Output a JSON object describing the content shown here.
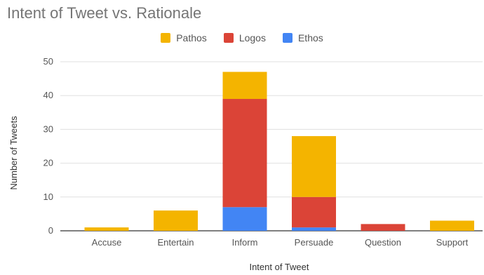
{
  "chart_data": {
    "type": "bar",
    "stacked": true,
    "title": "Intent of Tweet vs. Rationale",
    "xlabel": "Intent of Tweet",
    "ylabel": "Number of Tweets",
    "categories": [
      "Accuse",
      "Entertain",
      "Inform",
      "Persuade",
      "Question",
      "Support"
    ],
    "ylim": [
      0,
      50
    ],
    "yticks": [
      0,
      10,
      20,
      30,
      40,
      50
    ],
    "grid": true,
    "legend_position": "top",
    "series": [
      {
        "name": "Ethos",
        "color": "#4285f4",
        "values": [
          0,
          0,
          7,
          1,
          0,
          0
        ]
      },
      {
        "name": "Logos",
        "color": "#db4437",
        "values": [
          0,
          0,
          32,
          9,
          2,
          0
        ]
      },
      {
        "name": "Pathos",
        "color": "#f4b400",
        "values": [
          1,
          6,
          8,
          18,
          0,
          3
        ]
      }
    ],
    "legend_order": [
      "Pathos",
      "Logos",
      "Ethos"
    ]
  }
}
